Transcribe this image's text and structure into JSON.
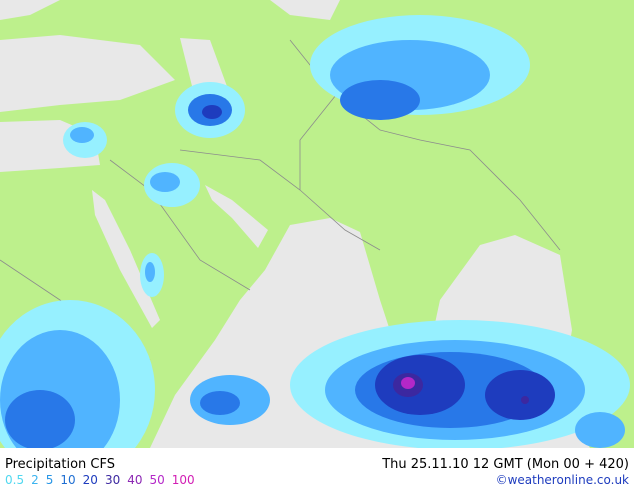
{
  "title": "Precipitation CFS",
  "date": "Thu 25.11.10 12 GMT (Mon 00 + 420)",
  "credit": "©weatheronline.co.uk",
  "legend": [
    {
      "value": 0.5,
      "color": "#50d8f0"
    },
    {
      "value": 2,
      "color": "#3cb4f0"
    },
    {
      "value": 5,
      "color": "#2896e6"
    },
    {
      "value": 10,
      "color": "#1e6ed2"
    },
    {
      "value": 20,
      "color": "#1e3cbe"
    },
    {
      "value": 30,
      "color": "#3c28a0"
    },
    {
      "value": 40,
      "color": "#8c28b4"
    },
    {
      "value": 50,
      "color": "#b428c8"
    },
    {
      "value": 100,
      "color": "#d21eb4"
    }
  ]
}
